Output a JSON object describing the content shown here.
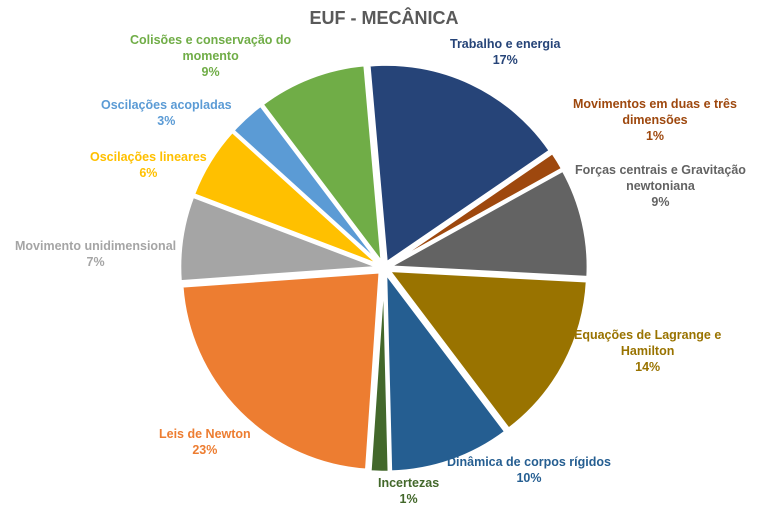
{
  "chart_data": {
    "type": "pie",
    "title": "EUF - MECÂNICA",
    "legend": "none",
    "slices": [
      {
        "name": "Trabalho e energia",
        "value": 17,
        "label": "17%",
        "color": "#264478"
      },
      {
        "name": "Movimentos em duas e três dimensões",
        "name_lines": [
          "Movimentos em duas e três",
          "dimensões"
        ],
        "value": 1.5,
        "label": "1%",
        "color": "#9E480E"
      },
      {
        "name": "Forças centrais e Gravitação newtoniana",
        "name_lines": [
          "Forças centrais e Gravitação",
          "newtoniana"
        ],
        "value": 9,
        "label": "9%",
        "color": "#636363"
      },
      {
        "name": "Equações de Lagrange e Hamilton",
        "name_lines": [
          "Equações de Lagrange e",
          "Hamilton"
        ],
        "value": 14,
        "label": "14%",
        "color": "#997300"
      },
      {
        "name": "Dinâmica de corpos rígidos",
        "value": 10,
        "label": "10%",
        "color": "#255E91"
      },
      {
        "name": "Incertezas",
        "value": 1.5,
        "label": "1%",
        "color": "#43682B"
      },
      {
        "name": "Leis de Newton",
        "value": 23,
        "label": "23%",
        "color": "#ED7D31"
      },
      {
        "name": "Movimento unidimensional",
        "value": 7,
        "label": "7%",
        "color": "#A5A5A5"
      },
      {
        "name": "Oscilações lineares",
        "value": 6,
        "label": "6%",
        "color": "#FFC000"
      },
      {
        "name": "Oscilações acopladas",
        "value": 3,
        "label": "3%",
        "color": "#5B9BD5"
      },
      {
        "name": "Colisões e conservação do momento",
        "name_lines": [
          "Colisões e conservação do",
          "momento"
        ],
        "value": 9,
        "label": "9%",
        "color": "#70AD47"
      }
    ]
  }
}
